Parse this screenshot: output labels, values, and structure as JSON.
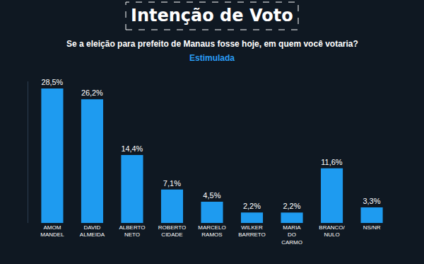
{
  "chart_data": {
    "type": "bar",
    "title": "Intenção de Voto",
    "subtitle": "Se a eleição para prefeito de Manaus fosse hoje, em quem você votaria?",
    "annotations": [
      "Estimulada"
    ],
    "categories": [
      "AMOM MANDEL",
      "DAVID ALMEIDA",
      "ALBERTO NETO",
      "ROBERTO CIDADE",
      "MARCELO RAMOS",
      "WILKER BARRETO",
      "MARIA DO CARMO",
      "BRANCO/NULO",
      "NS/NR"
    ],
    "values": [
      28.5,
      26.2,
      14.4,
      7.1,
      4.5,
      2.2,
      2.2,
      11.6,
      3.3
    ],
    "value_labels": [
      "28,5%",
      "26,2%",
      "14,4%",
      "7,1%",
      "4,5%",
      "2,2%",
      "2,2%",
      "11,6%",
      "3,3%"
    ],
    "color": "#1e9bf0",
    "ylim": [
      0,
      30
    ],
    "data_labels": true,
    "tick_labels": "x",
    "grid": false
  }
}
